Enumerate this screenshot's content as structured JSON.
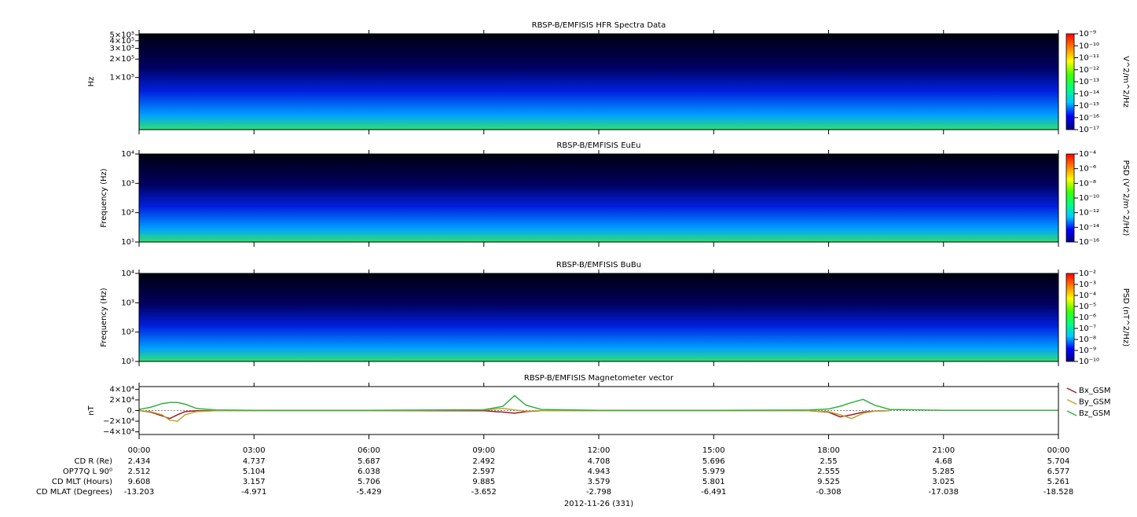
{
  "chart_data": [
    {
      "type": "spectrogram",
      "title": "RBSP-B/EMFISIS  HFR Spectra Data",
      "y_label": "Hz",
      "yscale": "log",
      "ylim": [
        14000,
        520000
      ],
      "yticks": [
        {
          "value": 100000,
          "label": "1×10⁵"
        },
        {
          "value": 200000,
          "label": "2×10⁵"
        },
        {
          "value": 300000,
          "label": "3×10⁵"
        },
        {
          "value": 400000,
          "label": "4×10⁵"
        },
        {
          "value": 500000,
          "label": "5×10⁵"
        }
      ],
      "colorbar_label": "V^2/m^2/Hz",
      "clim": [
        1e-17,
        1e-09
      ],
      "cticks": [
        {
          "value": 1e-17,
          "label": "10⁻¹⁷"
        },
        {
          "value": 1e-16,
          "label": "10⁻¹⁶"
        },
        {
          "value": 1e-15,
          "label": "10⁻¹⁵"
        },
        {
          "value": 1e-14,
          "label": "10⁻¹⁴"
        },
        {
          "value": 1e-13,
          "label": "10⁻¹³"
        },
        {
          "value": 1e-12,
          "label": "10⁻¹²"
        },
        {
          "value": 1e-11,
          "label": "10⁻¹¹"
        },
        {
          "value": 1e-10,
          "label": "10⁻¹⁰"
        },
        {
          "value": 1e-09,
          "label": "10⁻⁹"
        }
      ]
    },
    {
      "type": "spectrogram",
      "title": "RBSP-B/EMFISIS  EuEu",
      "y_label": "Frequency (Hz)",
      "yscale": "log",
      "ylim": [
        10,
        10000
      ],
      "yticks": [
        {
          "value": 10,
          "label": "10¹"
        },
        {
          "value": 100,
          "label": "10²"
        },
        {
          "value": 1000,
          "label": "10³"
        },
        {
          "value": 10000,
          "label": "10⁴"
        }
      ],
      "colorbar_label": "PSD (V^2/m^2/Hz)",
      "clim": [
        1e-16,
        0.0001
      ],
      "cticks": [
        {
          "value": 1e-16,
          "label": "10⁻¹⁶"
        },
        {
          "value": 1e-14,
          "label": "10⁻¹⁴"
        },
        {
          "value": 1e-12,
          "label": "10⁻¹²"
        },
        {
          "value": 1e-10,
          "label": "10⁻¹⁰"
        },
        {
          "value": 1e-08,
          "label": "10⁻⁸"
        },
        {
          "value": 1e-06,
          "label": "10⁻⁶"
        },
        {
          "value": 0.0001,
          "label": "10⁻⁴"
        }
      ]
    },
    {
      "type": "spectrogram",
      "title": "RBSP-B/EMFISIS  BuBu",
      "y_label": "Frequency (Hz)",
      "yscale": "log",
      "ylim": [
        10,
        10000
      ],
      "yticks": [
        {
          "value": 10,
          "label": "10¹"
        },
        {
          "value": 100,
          "label": "10²"
        },
        {
          "value": 1000,
          "label": "10³"
        },
        {
          "value": 10000,
          "label": "10⁴"
        }
      ],
      "colorbar_label": "PSD (nT^2/Hz)",
      "clim": [
        1e-10,
        0.01
      ],
      "cticks": [
        {
          "value": 1e-10,
          "label": "10⁻¹⁰"
        },
        {
          "value": 1e-09,
          "label": "10⁻⁹"
        },
        {
          "value": 1e-08,
          "label": "10⁻⁸"
        },
        {
          "value": 1e-07,
          "label": "10⁻⁷"
        },
        {
          "value": 1e-06,
          "label": "10⁻⁶"
        },
        {
          "value": 1e-05,
          "label": "10⁻⁵"
        },
        {
          "value": 0.0001,
          "label": "10⁻⁴"
        },
        {
          "value": 0.001,
          "label": "10⁻³"
        },
        {
          "value": 0.01,
          "label": "10⁻²"
        }
      ]
    },
    {
      "type": "line",
      "title": "RBSP-B/EMFISIS  Magnetometer vector",
      "y_label": "nT",
      "ylim": [
        -45000,
        45000
      ],
      "yticks": [
        {
          "value": -40000,
          "label": "−4×10⁴"
        },
        {
          "value": -20000,
          "label": "−2×10⁴"
        },
        {
          "value": 0,
          "label": "0."
        },
        {
          "value": 20000,
          "label": "2×10⁴"
        },
        {
          "value": 40000,
          "label": "4×10⁴"
        }
      ],
      "x": [
        0,
        0.3,
        0.6,
        0.8,
        1.0,
        1.2,
        1.5,
        2,
        3,
        6,
        9,
        9.5,
        9.8,
        10.1,
        10.5,
        12,
        15,
        17.5,
        18,
        18.3,
        18.6,
        18.9,
        19.2,
        19.6,
        21,
        24
      ],
      "series": [
        {
          "name": "Bx_GSM",
          "color": "#a01c28",
          "values": [
            0,
            -3000,
            -10000,
            -15000,
            -8000,
            -2000,
            -500,
            -200,
            -200,
            -200,
            -500,
            -3000,
            -5000,
            -2000,
            -500,
            -200,
            -200,
            -500,
            -3000,
            -12000,
            -8000,
            -3000,
            -1000,
            -200,
            null,
            null
          ]
        },
        {
          "name": "By_GSM",
          "color": "#b8a838",
          "values": [
            0,
            -2000,
            -8000,
            -18000,
            -20000,
            -8000,
            -2000,
            -500,
            -300,
            -300,
            1000,
            4000,
            1000,
            -1000,
            -500,
            -300,
            -300,
            -500,
            -2000,
            -8000,
            -15000,
            -5000,
            -1000,
            -300,
            null,
            null
          ]
        },
        {
          "name": "Bz_GSM",
          "color": "#34b040",
          "values": [
            2000,
            6000,
            13000,
            15000,
            15000,
            12000,
            4000,
            1000,
            500,
            500,
            1500,
            8000,
            28000,
            10000,
            2000,
            500,
            500,
            1000,
            3000,
            8000,
            15000,
            21000,
            10000,
            2000,
            500,
            300
          ]
        }
      ]
    }
  ],
  "colormap": [
    "#000080",
    "#0000ff",
    "#00c8ff",
    "#00ff80",
    "#40ff00",
    "#ffff00",
    "#ff8000",
    "#ff0000"
  ],
  "time_axis": {
    "xlim": [
      0,
      24
    ],
    "xticks": [
      {
        "value": 0,
        "label": "00:00"
      },
      {
        "value": 3,
        "label": "03:00"
      },
      {
        "value": 6,
        "label": "06:00"
      },
      {
        "value": 9,
        "label": "09:00"
      },
      {
        "value": 12,
        "label": "12:00"
      },
      {
        "value": 15,
        "label": "15:00"
      },
      {
        "value": 18,
        "label": "18:00"
      },
      {
        "value": 21,
        "label": "21:00"
      },
      {
        "value": 24,
        "label": "00:00"
      }
    ],
    "date": "2012-11-26 (331)"
  },
  "ephemeris": [
    {
      "name": "CD R (Re)",
      "values": [
        2.434,
        4.737,
        5.687,
        2.492,
        4.708,
        5.696,
        2.55,
        4.68,
        5.704
      ]
    },
    {
      "name": "OP77Q L 90⁰",
      "values": [
        2.512,
        5.104,
        6.038,
        2.597,
        4.943,
        5.979,
        2.555,
        5.285,
        6.577
      ]
    },
    {
      "name": "CD MLT (Hours)",
      "values": [
        9.608,
        3.157,
        5.706,
        9.885,
        3.579,
        5.801,
        9.525,
        3.025,
        5.261
      ]
    },
    {
      "name": "CD MLAT (Degrees)",
      "values": [
        -13.203,
        -4.971,
        -5.429,
        -3.652,
        -2.798,
        -6.491,
        -0.308,
        -17.038,
        -18.528
      ]
    }
  ]
}
